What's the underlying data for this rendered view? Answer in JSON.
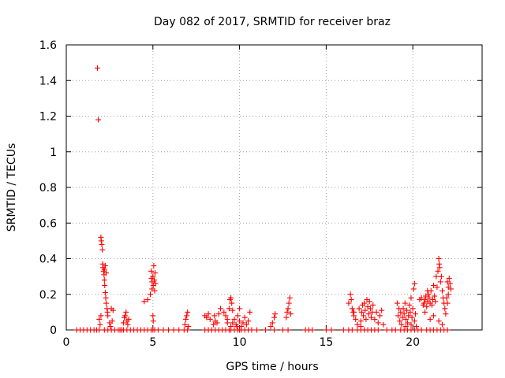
{
  "chart_data": {
    "type": "scatter",
    "title": "Day 082 of 2017, SRMTID for receiver braz",
    "xlabel": "GPS time / hours",
    "ylabel": "SRMTID / TECUs",
    "xlim": [
      0,
      24
    ],
    "ylim": [
      0,
      1.6
    ],
    "xticks": [
      0,
      5,
      10,
      15,
      20
    ],
    "xtick_labels": [
      "0",
      "5",
      "10",
      "15",
      "20"
    ],
    "yticks": [
      0,
      0.2,
      0.4,
      0.6,
      0.8,
      1.0,
      1.2,
      1.4,
      1.6
    ],
    "ytick_labels": [
      "0",
      "0.2",
      "0.4",
      "0.6",
      "0.8",
      "1",
      "1.2",
      "1.4",
      "1.6"
    ],
    "grid": true,
    "marker": "+",
    "color": "#ff0000",
    "series": [
      {
        "name": "braz",
        "points": [
          [
            0.6,
            0
          ],
          [
            0.8,
            0
          ],
          [
            1.0,
            0
          ],
          [
            1.2,
            0
          ],
          [
            1.4,
            0
          ],
          [
            1.6,
            0
          ],
          [
            1.75,
            0
          ],
          [
            1.9,
            0
          ],
          [
            1.8,
            1.47
          ],
          [
            1.85,
            1.18
          ],
          [
            1.9,
            0.06
          ],
          [
            1.95,
            0.03
          ],
          [
            2.0,
            0.08
          ],
          [
            2.0,
            0.52
          ],
          [
            2.02,
            0.5
          ],
          [
            2.05,
            0.48
          ],
          [
            2.08,
            0.45
          ],
          [
            2.1,
            0.37
          ],
          [
            2.12,
            0.35
          ],
          [
            2.15,
            0.33
          ],
          [
            2.18,
            0.31
          ],
          [
            2.2,
            0.28
          ],
          [
            2.22,
            0.25
          ],
          [
            2.25,
            0.21
          ],
          [
            2.28,
            0.18
          ],
          [
            2.3,
            0.15
          ],
          [
            2.35,
            0.12
          ],
          [
            2.38,
            0.1
          ],
          [
            2.4,
            0.08
          ],
          [
            2.2,
            0.34
          ],
          [
            2.25,
            0.36
          ],
          [
            2.3,
            0.32
          ],
          [
            2.5,
            0.04
          ],
          [
            2.55,
            0.02
          ],
          [
            2.6,
            0.12
          ],
          [
            2.65,
            0.05
          ],
          [
            2.7,
            0.11
          ],
          [
            2.2,
            0
          ],
          [
            2.4,
            0
          ],
          [
            2.6,
            0
          ],
          [
            2.8,
            0
          ],
          [
            3.0,
            0
          ],
          [
            3.1,
            0
          ],
          [
            3.2,
            0
          ],
          [
            3.3,
            0.04
          ],
          [
            3.35,
            0.07
          ],
          [
            3.4,
            0.08
          ],
          [
            3.45,
            0.1
          ],
          [
            3.5,
            0.05
          ],
          [
            3.55,
            0.03
          ],
          [
            3.6,
            0.06
          ],
          [
            3.3,
            0
          ],
          [
            3.5,
            0
          ],
          [
            3.7,
            0
          ],
          [
            3.9,
            0
          ],
          [
            4.1,
            0
          ],
          [
            4.3,
            0
          ],
          [
            4.5,
            0
          ],
          [
            4.5,
            0.16
          ],
          [
            4.7,
            0.17
          ],
          [
            4.85,
            0.2
          ],
          [
            4.9,
            0.33
          ],
          [
            4.92,
            0.29
          ],
          [
            4.95,
            0.27
          ],
          [
            5.0,
            0.3
          ],
          [
            5.02,
            0.25
          ],
          [
            5.05,
            0.36
          ],
          [
            5.08,
            0.28
          ],
          [
            5.1,
            0.22
          ],
          [
            5.12,
            0.32
          ],
          [
            5.15,
            0.26
          ],
          [
            5.0,
            0.08
          ],
          [
            5.02,
            0.05
          ],
          [
            4.95,
            0.23
          ],
          [
            4.7,
            0
          ],
          [
            4.9,
            0
          ],
          [
            5.0,
            0
          ],
          [
            5.1,
            0
          ],
          [
            5.3,
            0
          ],
          [
            5.6,
            0
          ],
          [
            5.9,
            0
          ],
          [
            6.2,
            0
          ],
          [
            6.5,
            0
          ],
          [
            6.8,
            0
          ],
          [
            7.0,
            0
          ],
          [
            6.85,
            0.03
          ],
          [
            6.9,
            0.06
          ],
          [
            6.95,
            0.08
          ],
          [
            7.0,
            0.1
          ],
          [
            7.05,
            0.02
          ],
          [
            8.0,
            0
          ],
          [
            8.2,
            0
          ],
          [
            8.4,
            0
          ],
          [
            8.6,
            0
          ],
          [
            8.8,
            0
          ],
          [
            8.0,
            0.08
          ],
          [
            8.1,
            0.07
          ],
          [
            8.2,
            0.09
          ],
          [
            8.3,
            0.06
          ],
          [
            8.5,
            0.03
          ],
          [
            8.6,
            0.05
          ],
          [
            8.7,
            0.04
          ],
          [
            8.8,
            0.09
          ],
          [
            8.9,
            0.12
          ],
          [
            8.55,
            0.08
          ],
          [
            9.0,
            0
          ],
          [
            9.2,
            0
          ],
          [
            9.4,
            0
          ],
          [
            9.5,
            0
          ],
          [
            9.7,
            0
          ],
          [
            9.9,
            0
          ],
          [
            10.0,
            0
          ],
          [
            10.1,
            0
          ],
          [
            10.3,
            0
          ],
          [
            10.5,
            0
          ],
          [
            10.7,
            0
          ],
          [
            9.1,
            0.1
          ],
          [
            9.2,
            0.08
          ],
          [
            9.3,
            0.06
          ],
          [
            9.4,
            0.12
          ],
          [
            9.45,
            0.17
          ],
          [
            9.5,
            0.18
          ],
          [
            9.55,
            0.15
          ],
          [
            9.6,
            0.11
          ],
          [
            9.3,
            0.04
          ],
          [
            9.5,
            0.02
          ],
          [
            9.6,
            0.04
          ],
          [
            9.7,
            0.06
          ],
          [
            9.8,
            0.03
          ],
          [
            9.9,
            0.08
          ],
          [
            10.0,
            0.05
          ],
          [
            10.1,
            0.02
          ],
          [
            10.2,
            0.04
          ],
          [
            10.3,
            0.07
          ],
          [
            10.4,
            0.03
          ],
          [
            10.5,
            0.05
          ],
          [
            10.6,
            0.1
          ],
          [
            10.0,
            0.12
          ],
          [
            9.85,
            0.02
          ],
          [
            11.0,
            0
          ],
          [
            11.5,
            0
          ],
          [
            12.0,
            0
          ],
          [
            12.5,
            0
          ],
          [
            12.8,
            0
          ],
          [
            11.8,
            0.02
          ],
          [
            11.9,
            0.04
          ],
          [
            12.0,
            0.07
          ],
          [
            12.05,
            0.09
          ],
          [
            12.7,
            0.07
          ],
          [
            12.75,
            0.1
          ],
          [
            12.8,
            0.12
          ],
          [
            12.85,
            0.15
          ],
          [
            12.9,
            0.18
          ],
          [
            12.95,
            0.09
          ],
          [
            13.8,
            0
          ],
          [
            14.0,
            0
          ],
          [
            14.2,
            0
          ],
          [
            15.0,
            0
          ],
          [
            15.3,
            0
          ],
          [
            16.0,
            0
          ],
          [
            16.3,
            0
          ],
          [
            16.5,
            0
          ],
          [
            16.8,
            0
          ],
          [
            16.3,
            0.15
          ],
          [
            16.4,
            0.2
          ],
          [
            16.45,
            0.17
          ],
          [
            16.5,
            0.12
          ],
          [
            16.55,
            0.1
          ],
          [
            16.6,
            0.08
          ],
          [
            16.7,
            0.06
          ],
          [
            16.8,
            0.03
          ],
          [
            16.9,
            0.12
          ],
          [
            17.0,
            0.05
          ],
          [
            17.05,
            0.1
          ],
          [
            17.1,
            0.14
          ],
          [
            17.15,
            0.08
          ],
          [
            17.2,
            0.15
          ],
          [
            17.25,
            0.11
          ],
          [
            17.3,
            0.06
          ],
          [
            17.35,
            0.17
          ],
          [
            17.4,
            0.13
          ],
          [
            17.45,
            0.09
          ],
          [
            17.5,
            0.16
          ],
          [
            17.55,
            0.12
          ],
          [
            17.6,
            0.07
          ],
          [
            17.65,
            0.1
          ],
          [
            17.7,
            0.14
          ],
          [
            17.8,
            0.06
          ],
          [
            17.9,
            0.1
          ],
          [
            18.0,
            0.04
          ],
          [
            18.1,
            0.08
          ],
          [
            18.2,
            0.11
          ],
          [
            18.3,
            0.03
          ],
          [
            16.6,
            0.1
          ],
          [
            17.0,
            0.02
          ],
          [
            17.0,
            0
          ],
          [
            17.2,
            0
          ],
          [
            17.4,
            0
          ],
          [
            17.6,
            0
          ],
          [
            17.8,
            0
          ],
          [
            18.0,
            0
          ],
          [
            18.5,
            0
          ],
          [
            18.8,
            0
          ],
          [
            19.0,
            0
          ],
          [
            19.1,
            0.15
          ],
          [
            19.15,
            0.08
          ],
          [
            19.2,
            0.12
          ],
          [
            19.25,
            0.05
          ],
          [
            19.3,
            0.1
          ],
          [
            19.35,
            0.03
          ],
          [
            19.4,
            0.07
          ],
          [
            19.45,
            0.12
          ],
          [
            19.5,
            0.09
          ],
          [
            19.55,
            0.15
          ],
          [
            19.6,
            0.06
          ],
          [
            19.65,
            0.11
          ],
          [
            19.7,
            0.04
          ],
          [
            19.75,
            0.08
          ],
          [
            19.8,
            0.14
          ],
          [
            19.85,
            0.1
          ],
          [
            19.9,
            0.18
          ],
          [
            19.95,
            0.07
          ],
          [
            20.0,
            0.12
          ],
          [
            20.05,
            0.23
          ],
          [
            20.1,
            0.26
          ],
          [
            20.1,
            0.05
          ],
          [
            20.15,
            0.09
          ],
          [
            20.2,
            0.02
          ],
          [
            19.9,
            0.03
          ],
          [
            19.6,
            0.02
          ],
          [
            19.3,
            0
          ],
          [
            19.5,
            0
          ],
          [
            19.7,
            0
          ],
          [
            19.9,
            0
          ],
          [
            20.1,
            0
          ],
          [
            20.3,
            0
          ],
          [
            20.5,
            0
          ],
          [
            20.4,
            0.17
          ],
          [
            20.5,
            0.18
          ],
          [
            20.6,
            0.14
          ],
          [
            20.65,
            0.15
          ],
          [
            20.7,
            0.17
          ],
          [
            20.75,
            0.19
          ],
          [
            20.8,
            0.13
          ],
          [
            20.85,
            0.16
          ],
          [
            20.9,
            0.2
          ],
          [
            20.95,
            0.18
          ],
          [
            21.0,
            0.15
          ],
          [
            21.05,
            0.22
          ],
          [
            21.1,
            0.14
          ],
          [
            21.15,
            0.17
          ],
          [
            21.2,
            0.25
          ],
          [
            21.25,
            0.19
          ],
          [
            21.3,
            0.16
          ],
          [
            21.35,
            0.3
          ],
          [
            21.4,
            0.24
          ],
          [
            21.45,
            0.33
          ],
          [
            21.5,
            0.4
          ],
          [
            21.52,
            0.37
          ],
          [
            21.55,
            0.35
          ],
          [
            21.6,
            0.27
          ],
          [
            21.65,
            0.3
          ],
          [
            21.7,
            0.22
          ],
          [
            21.75,
            0.18
          ],
          [
            21.8,
            0.15
          ],
          [
            21.85,
            0.12
          ],
          [
            21.9,
            0.09
          ],
          [
            21.0,
            0.06
          ],
          [
            21.2,
            0.08
          ],
          [
            21.5,
            0.05
          ],
          [
            21.7,
            0.03
          ],
          [
            22.0,
            0.27
          ],
          [
            22.05,
            0.24
          ],
          [
            22.1,
            0.29
          ],
          [
            22.15,
            0.26
          ],
          [
            22.2,
            0.23
          ],
          [
            21.95,
            0.18
          ],
          [
            22.0,
            0.15
          ],
          [
            22.05,
            0.2
          ],
          [
            20.7,
            0.1
          ],
          [
            20.85,
            0.22
          ],
          [
            20.8,
            0
          ],
          [
            21.0,
            0
          ],
          [
            21.2,
            0
          ],
          [
            21.4,
            0
          ],
          [
            21.6,
            0
          ],
          [
            21.8,
            0
          ],
          [
            22.0,
            0
          ]
        ]
      }
    ]
  }
}
